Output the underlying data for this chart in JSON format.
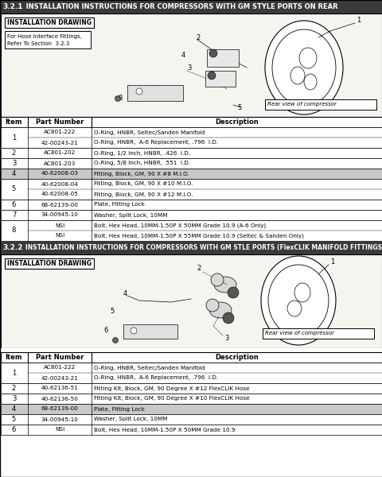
{
  "section1_header_num": "3.2.1",
  "section1_header_text": "   INSTALLATION INSTRUCTIONS FOR COMPRESSORS WITH GM STYLE PORTS ON REAR",
  "section2_header_num": "3.2.2",
  "section2_header_text": "   INSTALLATION INSTRUCTIONS FOR COMPRESSORS WITH GM STLE PORTS (FlexCLIK MANIFOLD FITTINGS)",
  "header_bg": "#3a3a3a",
  "header_fg": "#ffffff",
  "table1_rows": [
    [
      "1",
      "AC801-222",
      "O-Ring, HNBR, Seltec/Sanden Manifold"
    ],
    [
      "",
      "42-00243-21",
      "O-Ring, HNBR,  A-6 Replacement, .796  I.D."
    ],
    [
      "2",
      "AC801-202",
      "O-Ring, 1/2 Inch, HNBR, .426  I.D."
    ],
    [
      "3",
      "AC801-203",
      "O-Ring, 5/8 Inch, HNBR, .551  I.D."
    ],
    [
      "4",
      "40-62008-03",
      "Fitting, Block, GM, 90 X #8 M.I.O."
    ],
    [
      "5",
      "40-62008-04",
      "Fitting, Block, GM, 90 X #10 M.I.O."
    ],
    [
      "",
      "40-62008-05",
      "Fitting, Block, GM, 90 X #12 M.I.O."
    ],
    [
      "6",
      "68-62139-00",
      "Plate, Fitting Lock"
    ],
    [
      "7",
      "34-00945-10",
      "Washer, Split Lock, 10MM"
    ],
    [
      "8",
      "NSI",
      "Bolt, Hex Head, 10MM-1.50P X 50MM Grade 10.9 (A-6 Only)"
    ],
    [
      "",
      "NSI",
      "Bolt, Hex Head, 10MM-1.50P X 55MM Grade 10.9 (Seltec & Sanden Only)"
    ]
  ],
  "table1_groups": [
    {
      "rows": [
        0,
        1
      ],
      "item": "1",
      "highlight": false
    },
    {
      "rows": [
        2
      ],
      "item": "2",
      "highlight": false
    },
    {
      "rows": [
        3
      ],
      "item": "3",
      "highlight": false
    },
    {
      "rows": [
        4
      ],
      "item": "4",
      "highlight": true
    },
    {
      "rows": [
        5,
        6
      ],
      "item": "5",
      "highlight": false
    },
    {
      "rows": [
        7
      ],
      "item": "6",
      "highlight": false
    },
    {
      "rows": [
        8
      ],
      "item": "7",
      "highlight": false
    },
    {
      "rows": [
        9,
        10
      ],
      "item": "8",
      "highlight": false
    }
  ],
  "table2_rows": [
    [
      "1",
      "AC801-222",
      "O-Ring, HNBR, Seltec/Sanden Manifold"
    ],
    [
      "",
      "42-00243-21",
      "O-Ring, HNBR,  A-6 Replacement, .796  I.D."
    ],
    [
      "2",
      "40-62136-51",
      "Fitting Kit, Block, GM, 90 Degree X #12 FlexCLIK Hose"
    ],
    [
      "3",
      "40-62136-50",
      "Fitting Kit, Block, GM, 90 Degree X #10 FlexCLIK Hose"
    ],
    [
      "4",
      "68-62139-00",
      "Plate, Fitting Lock"
    ],
    [
      "5",
      "34-00945-10",
      "Washer, Split Lock, 10MM"
    ],
    [
      "6",
      "NSI",
      "Bolt, Hex Head, 10MM-1.50P X 50MM Grade 10.9"
    ]
  ],
  "table2_groups": [
    {
      "rows": [
        0,
        1
      ],
      "item": "1",
      "highlight": false
    },
    {
      "rows": [
        2
      ],
      "item": "2",
      "highlight": false
    },
    {
      "rows": [
        3
      ],
      "item": "3",
      "highlight": false
    },
    {
      "rows": [
        4
      ],
      "item": "4",
      "highlight": true
    },
    {
      "rows": [
        5
      ],
      "item": "5",
      "highlight": false
    },
    {
      "rows": [
        6
      ],
      "item": "6",
      "highlight": false
    }
  ],
  "bg_color": "#ffffff",
  "highlight_color": "#c8c8c8",
  "table_border": "#000000"
}
